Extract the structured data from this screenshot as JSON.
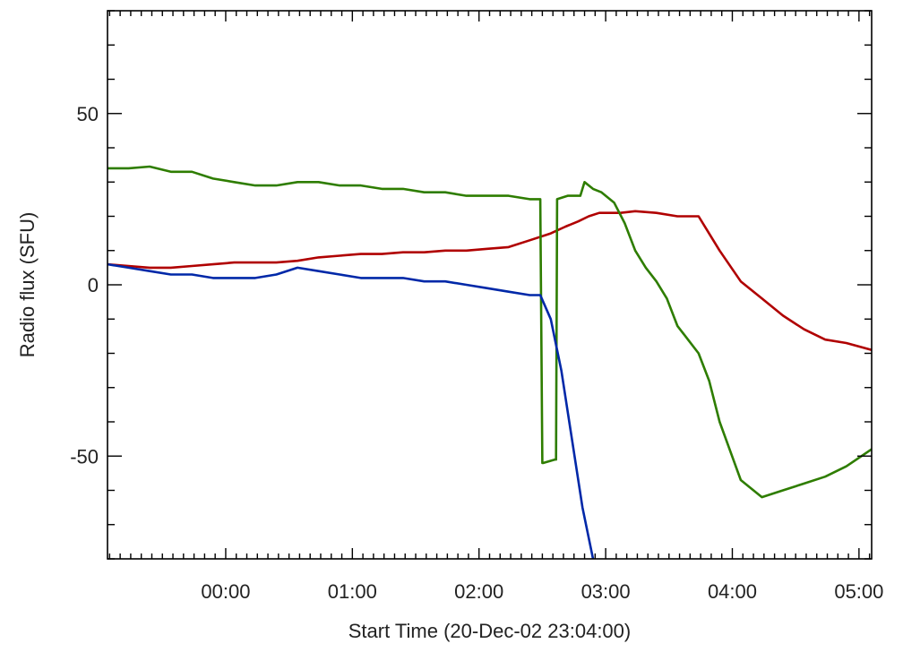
{
  "chart_data": {
    "type": "line",
    "title": "",
    "xlabel": "Start Time (20-Dec-02 23:04:00)",
    "ylabel": "Radio flux (SFU)",
    "x_unit": "minutes from start time",
    "xlim": [
      0,
      362
    ],
    "ylim": [
      -80,
      80
    ],
    "x_tick_values": [
      56,
      116,
      176,
      236,
      296,
      356
    ],
    "x_tick_labels": [
      "00:00",
      "01:00",
      "02:00",
      "03:00",
      "04:00",
      "05:00"
    ],
    "y_tick_values": [
      -50,
      0,
      50
    ],
    "y_tick_labels": [
      "-50",
      "0",
      "50"
    ],
    "grid": false,
    "legend": "none",
    "colors": {
      "red": "#b00000",
      "green": "#2e7d00",
      "blue": "#0028a8",
      "axis": "#000000"
    },
    "series": [
      {
        "color": "#b00000",
        "x": [
          0,
          10,
          20,
          30,
          40,
          50,
          60,
          70,
          80,
          90,
          100,
          110,
          120,
          130,
          140,
          150,
          160,
          170,
          180,
          190,
          200,
          210,
          217,
          223,
          228,
          233,
          238,
          243,
          250,
          260,
          270,
          280,
          290,
          300,
          310,
          320,
          330,
          340,
          350,
          362
        ],
        "y": [
          6,
          5.5,
          5,
          5,
          5.5,
          6,
          6.5,
          6.5,
          6.5,
          7,
          8,
          8.5,
          9,
          9,
          9.5,
          9.5,
          10,
          10,
          10.5,
          11,
          13,
          15,
          17,
          18.5,
          20,
          21,
          21,
          21,
          21.5,
          21,
          20,
          20,
          10,
          1,
          -4,
          -9,
          -13,
          -16,
          -17,
          -19
        ]
      },
      {
        "color": "#2e7d00",
        "x": [
          0,
          10,
          20,
          30,
          40,
          50,
          60,
          70,
          80,
          90,
          100,
          110,
          120,
          130,
          140,
          150,
          160,
          170,
          180,
          190,
          200,
          205,
          206,
          206.5,
          212,
          212.5,
          213,
          218,
          224,
          226,
          230,
          234,
          240,
          245,
          250,
          255,
          260,
          265,
          270,
          275,
          280,
          285,
          290,
          300,
          310,
          320,
          330,
          340,
          350,
          362
        ],
        "y": [
          34,
          34,
          34.5,
          33,
          33,
          31,
          30,
          29,
          29,
          30,
          30,
          29,
          29,
          28,
          28,
          27,
          27,
          26,
          26,
          26,
          25,
          25,
          -52,
          -52,
          -51,
          -51,
          25,
          26,
          26,
          30,
          28,
          27,
          24,
          18,
          10,
          5,
          1,
          -4,
          -12,
          -16,
          -20,
          -28,
          -40,
          -57,
          -62,
          -60,
          -58,
          -56,
          -53,
          -48
        ]
      },
      {
        "color": "#0028a8",
        "x": [
          0,
          10,
          20,
          30,
          40,
          50,
          60,
          70,
          80,
          90,
          100,
          110,
          120,
          130,
          140,
          150,
          160,
          170,
          180,
          190,
          200,
          205,
          210,
          215,
          220,
          225,
          230
        ],
        "y": [
          6,
          5,
          4,
          3,
          3,
          2,
          2,
          2,
          3,
          5,
          4,
          3,
          2,
          2,
          2,
          1,
          1,
          0,
          -1,
          -2,
          -3,
          -3,
          -10,
          -25,
          -45,
          -65,
          -80
        ]
      }
    ]
  }
}
